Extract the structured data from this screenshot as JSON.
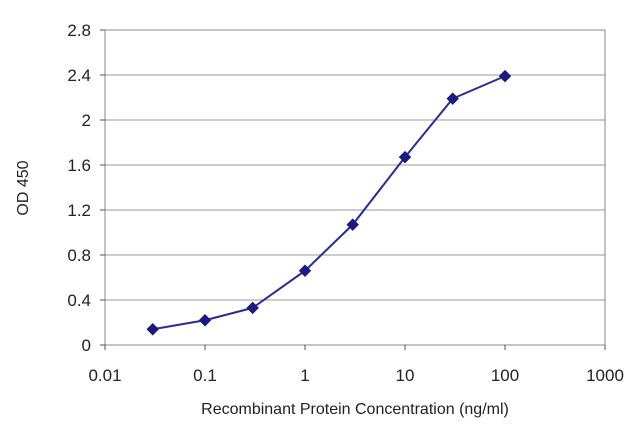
{
  "chart_data": {
    "type": "line",
    "title": "",
    "xlabel": "Recombinant Protein Concentration (ng/ml)",
    "ylabel": "OD 450",
    "x_scale": "log",
    "xlim": [
      0.01,
      1000
    ],
    "ylim": [
      0,
      2.8
    ],
    "x_ticks": [
      0.01,
      0.1,
      1,
      10,
      100,
      1000
    ],
    "x_tick_labels": [
      "0.01",
      "0.1",
      "1",
      "10",
      "100",
      "1000"
    ],
    "y_ticks": [
      0,
      0.4,
      0.8,
      1.2,
      1.6,
      2,
      2.4,
      2.8
    ],
    "y_tick_labels": [
      "0",
      "0.4",
      "0.8",
      "1.2",
      "1.6",
      "2",
      "2.4",
      "2.8"
    ],
    "grid": "horizontal",
    "legend": "none",
    "series": [
      {
        "color": "#2a2a9a",
        "marker": "diamond",
        "points": [
          {
            "x": 0.03,
            "y": 0.14
          },
          {
            "x": 0.1,
            "y": 0.22
          },
          {
            "x": 0.3,
            "y": 0.33
          },
          {
            "x": 1,
            "y": 0.66
          },
          {
            "x": 3,
            "y": 1.07
          },
          {
            "x": 10,
            "y": 1.67
          },
          {
            "x": 30,
            "y": 2.19
          },
          {
            "x": 100,
            "y": 2.39
          }
        ]
      }
    ]
  }
}
